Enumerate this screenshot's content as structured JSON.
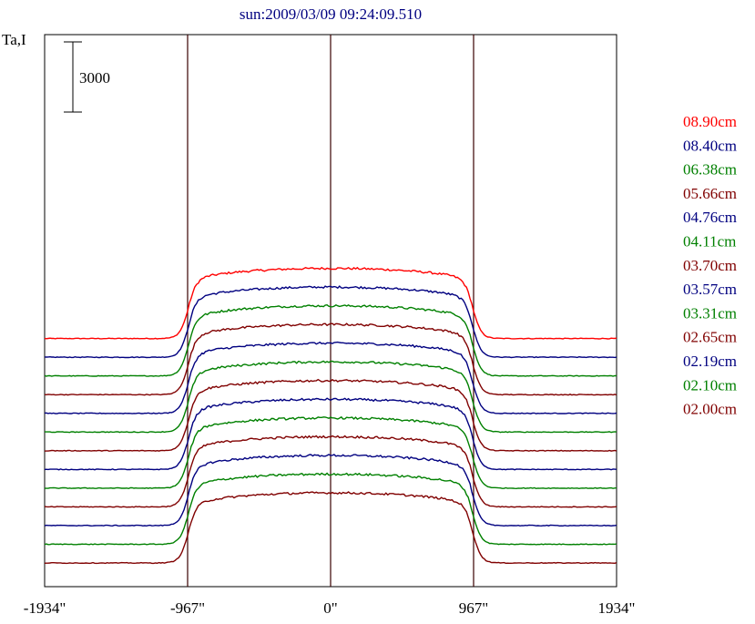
{
  "chart_data": {
    "type": "line",
    "title": "sun:2009/03/09 09:24:09.510",
    "ylabel": "Ta,I",
    "scale_bar": {
      "label": "3000",
      "value": 3000
    },
    "x_ticks": [
      {
        "value": -1934,
        "label": "-1934\""
      },
      {
        "value": -967,
        "label": "-967\""
      },
      {
        "value": 0,
        "label": "0\""
      },
      {
        "value": 967,
        "label": "967\""
      },
      {
        "value": 1934,
        "label": "1934\""
      }
    ],
    "vertical_lines": [
      -967,
      0,
      967
    ],
    "xlim": [
      -1934,
      1934
    ],
    "disk_radius_arcsec": 967,
    "series": [
      {
        "name": "08.90cm",
        "color": "#ff0000",
        "baseline": 9600,
        "plateau": 3000
      },
      {
        "name": "08.40cm",
        "color": "#000080",
        "baseline": 8800,
        "plateau": 3000
      },
      {
        "name": "06.38cm",
        "color": "#008000",
        "baseline": 8000,
        "plateau": 3000
      },
      {
        "name": "05.66cm",
        "color": "#800000",
        "baseline": 7200,
        "plateau": 3000
      },
      {
        "name": "04.76cm",
        "color": "#000080",
        "baseline": 6400,
        "plateau": 3000
      },
      {
        "name": "04.11cm",
        "color": "#008000",
        "baseline": 5600,
        "plateau": 3000
      },
      {
        "name": "03.70cm",
        "color": "#800000",
        "baseline": 4800,
        "plateau": 3000
      },
      {
        "name": "03.57cm",
        "color": "#000080",
        "baseline": 4000,
        "plateau": 3000
      },
      {
        "name": "03.31cm",
        "color": "#008000",
        "baseline": 3200,
        "plateau": 3000
      },
      {
        "name": "02.65cm",
        "color": "#800000",
        "baseline": 2400,
        "plateau": 3000
      },
      {
        "name": "02.19cm",
        "color": "#000080",
        "baseline": 1600,
        "plateau": 3000
      },
      {
        "name": "02.10cm",
        "color": "#008000",
        "baseline": 800,
        "plateau": 3000
      },
      {
        "name": "02.00cm",
        "color": "#800000",
        "baseline": 0,
        "plateau": 3000
      }
    ]
  }
}
